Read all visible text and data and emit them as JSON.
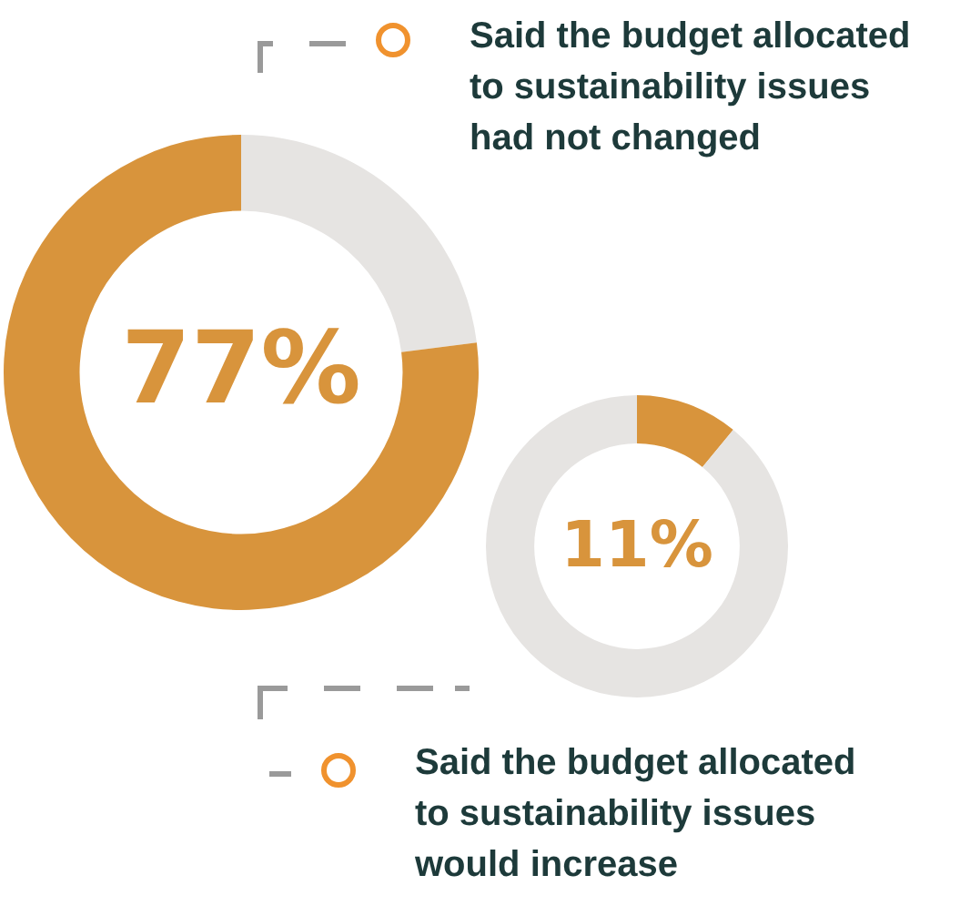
{
  "chart_data": [
    {
      "type": "donut",
      "title": "Said the budget allocated to sustainability issues had not changed",
      "categories": [
        null,
        null
      ],
      "values": [
        23,
        77
      ],
      "colors": [
        "#e6e4e2",
        "#d8943c"
      ],
      "value_labels": [
        null,
        "77%"
      ]
    },
    {
      "type": "donut",
      "title": "Said the budget allocated to sustainability issues would increase",
      "categories": [
        null,
        null
      ],
      "values": [
        11,
        89
      ],
      "colors": [
        "#d8943c",
        "#e6e4e2"
      ],
      "annotations": [
        "11%"
      ]
    }
  ]
}
